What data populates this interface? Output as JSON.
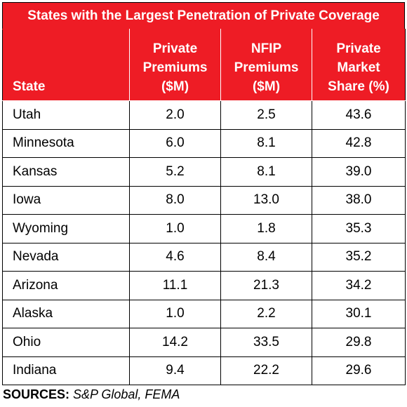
{
  "title": "States with the Largest Penetration of Private Coverage",
  "columns": [
    {
      "lines": [
        "State"
      ]
    },
    {
      "lines": [
        "Private",
        "Premiums",
        "($M)"
      ]
    },
    {
      "lines": [
        "NFIP",
        "Premiums",
        "($M)"
      ]
    },
    {
      "lines": [
        "Private",
        "Market",
        "Share (%)"
      ]
    }
  ],
  "rows": [
    {
      "state": "Utah",
      "private_premiums": "2.0",
      "nfip_premiums": "2.5",
      "private_share": "43.6"
    },
    {
      "state": "Minnesota",
      "private_premiums": "6.0",
      "nfip_premiums": "8.1",
      "private_share": "42.8"
    },
    {
      "state": "Kansas",
      "private_premiums": "5.2",
      "nfip_premiums": "8.1",
      "private_share": "39.0"
    },
    {
      "state": "Iowa",
      "private_premiums": "8.0",
      "nfip_premiums": "13.0",
      "private_share": "38.0"
    },
    {
      "state": "Wyoming",
      "private_premiums": "1.0",
      "nfip_premiums": "1.8",
      "private_share": "35.3"
    },
    {
      "state": "Nevada",
      "private_premiums": "4.6",
      "nfip_premiums": "8.4",
      "private_share": "35.2"
    },
    {
      "state": "Arizona",
      "private_premiums": "11.1",
      "nfip_premiums": "21.3",
      "private_share": "34.2"
    },
    {
      "state": "Alaska",
      "private_premiums": "1.0",
      "nfip_premiums": "2.2",
      "private_share": "30.1"
    },
    {
      "state": "Ohio",
      "private_premiums": "14.2",
      "nfip_premiums": "33.5",
      "private_share": "29.8"
    },
    {
      "state": "Indiana",
      "private_premiums": "9.4",
      "nfip_premiums": "22.2",
      "private_share": "29.6"
    }
  ],
  "sources": {
    "label": "SOURCES:",
    "text": "S&P Global, FEMA"
  },
  "colors": {
    "header_red": "#ee1c25",
    "header_text": "#ffffff",
    "border": "#000000"
  }
}
